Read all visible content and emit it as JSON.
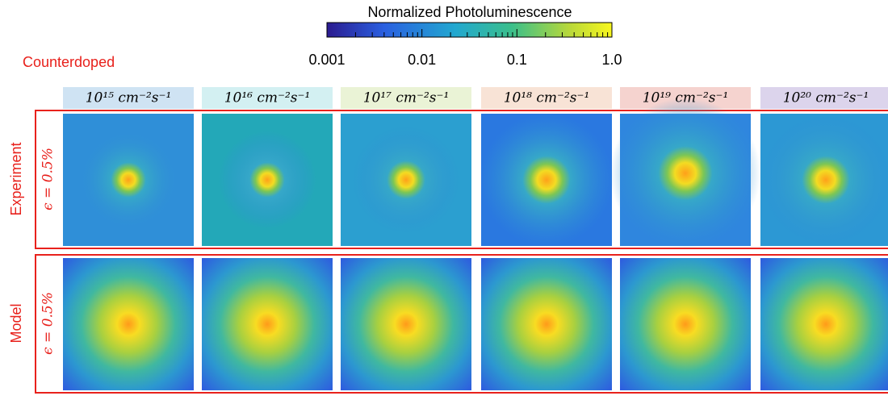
{
  "colorbar": {
    "title": "Normalized  Photoluminescence",
    "tick_labels": [
      "0.001",
      "0.01",
      "0.1",
      "1.0"
    ]
  },
  "group_label": "Counterdoped",
  "columns": [
    {
      "header": "10¹⁵ cm⁻²s⁻¹",
      "color": "#cfe3f3"
    },
    {
      "header": "10¹⁶ cm⁻²s⁻¹",
      "color": "#d3f0f2"
    },
    {
      "header": "10¹⁷ cm⁻²s⁻¹",
      "color": "#eaf3d6"
    },
    {
      "header": "10¹⁸ cm⁻²s⁻¹",
      "color": "#f8e3d6"
    },
    {
      "header": "10¹⁹ cm⁻²s⁻¹",
      "color": "#f5d3cf"
    },
    {
      "header": "10²⁰ cm⁻²s⁻¹",
      "color": "#dcd4ec"
    }
  ],
  "rows": [
    {
      "label": "Experiment",
      "condition": "ϵ = 0.5%"
    },
    {
      "label": "Model",
      "condition": "ϵ = 0.5%"
    }
  ]
}
